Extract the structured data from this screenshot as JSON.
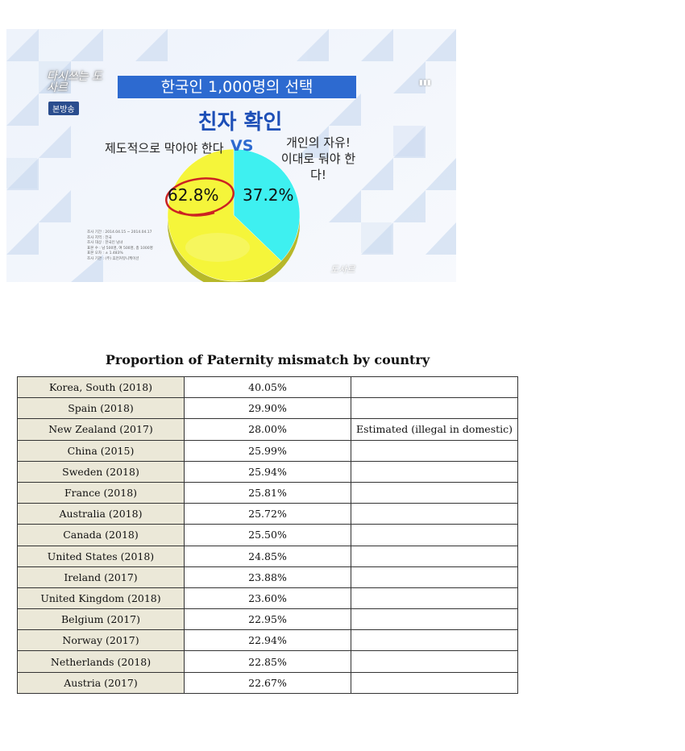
{
  "tv_screen": {
    "logo_text": "다시쓰는 도사르",
    "badge": "본방송",
    "title": "한국인 1,000명의 선택",
    "subtitle": "친자 확인",
    "option_left": "제도적으로 막아야 한다",
    "vs_text": "VS",
    "option_right_line1": "개인의 자유!",
    "option_right_line2": "이대로 둬야 한다!",
    "survey_note": [
      "조사 기간 : 2014.04.15 ~ 2014.04.17",
      "조사 지역 : 전국",
      "조사 대상 : 한국인 남녀",
      "표본 수 : 남 500명, 여 500명, 총 1000명",
      "표본 오차 : ± 1.483%",
      "조사 기관 : (주) 휴먼커뮤니케이션"
    ],
    "watermark": "도사르",
    "colors": {
      "banner": "#2d6ad0",
      "subtitle": "#1d4fb7",
      "slice_left": "#f5f53a",
      "slice_right": "#3ef0f0",
      "circle": "#cc2222"
    }
  },
  "chart_data": {
    "type": "pie",
    "title": "친자 확인",
    "slices": [
      {
        "label": "제도적으로 막아야 한다",
        "value": 62.8,
        "value_label": "62.8%",
        "color": "#f5f53a"
      },
      {
        "label": "개인의 자유! 이대로 둬야 한다!",
        "value": 37.2,
        "value_label": "37.2%",
        "color": "#3ef0f0"
      }
    ]
  },
  "table": {
    "title": "Proportion of Paternity mismatch by country",
    "rows": [
      {
        "country": "Korea, South (2018)",
        "value": "40.05%",
        "note": ""
      },
      {
        "country": "Spain (2018)",
        "value": "29.90%",
        "note": ""
      },
      {
        "country": "New Zealand (2017)",
        "value": "28.00%",
        "note": "Estimated (illegal in domestic)"
      },
      {
        "country": "China (2015)",
        "value": "25.99%",
        "note": ""
      },
      {
        "country": "Sweden (2018)",
        "value": "25.94%",
        "note": ""
      },
      {
        "country": "France (2018)",
        "value": "25.81%",
        "note": ""
      },
      {
        "country": "Australia (2018)",
        "value": "25.72%",
        "note": ""
      },
      {
        "country": "Canada (2018)",
        "value": "25.50%",
        "note": ""
      },
      {
        "country": "United States (2018)",
        "value": "24.85%",
        "note": ""
      },
      {
        "country": "Ireland (2017)",
        "value": "23.88%",
        "note": ""
      },
      {
        "country": "United Kingdom (2018)",
        "value": "23.60%",
        "note": ""
      },
      {
        "country": "Belgium (2017)",
        "value": "22.95%",
        "note": ""
      },
      {
        "country": "Norway (2017)",
        "value": "22.94%",
        "note": ""
      },
      {
        "country": "Netherlands (2018)",
        "value": "22.85%",
        "note": ""
      },
      {
        "country": "Austria (2017)",
        "value": "22.67%",
        "note": ""
      }
    ]
  }
}
